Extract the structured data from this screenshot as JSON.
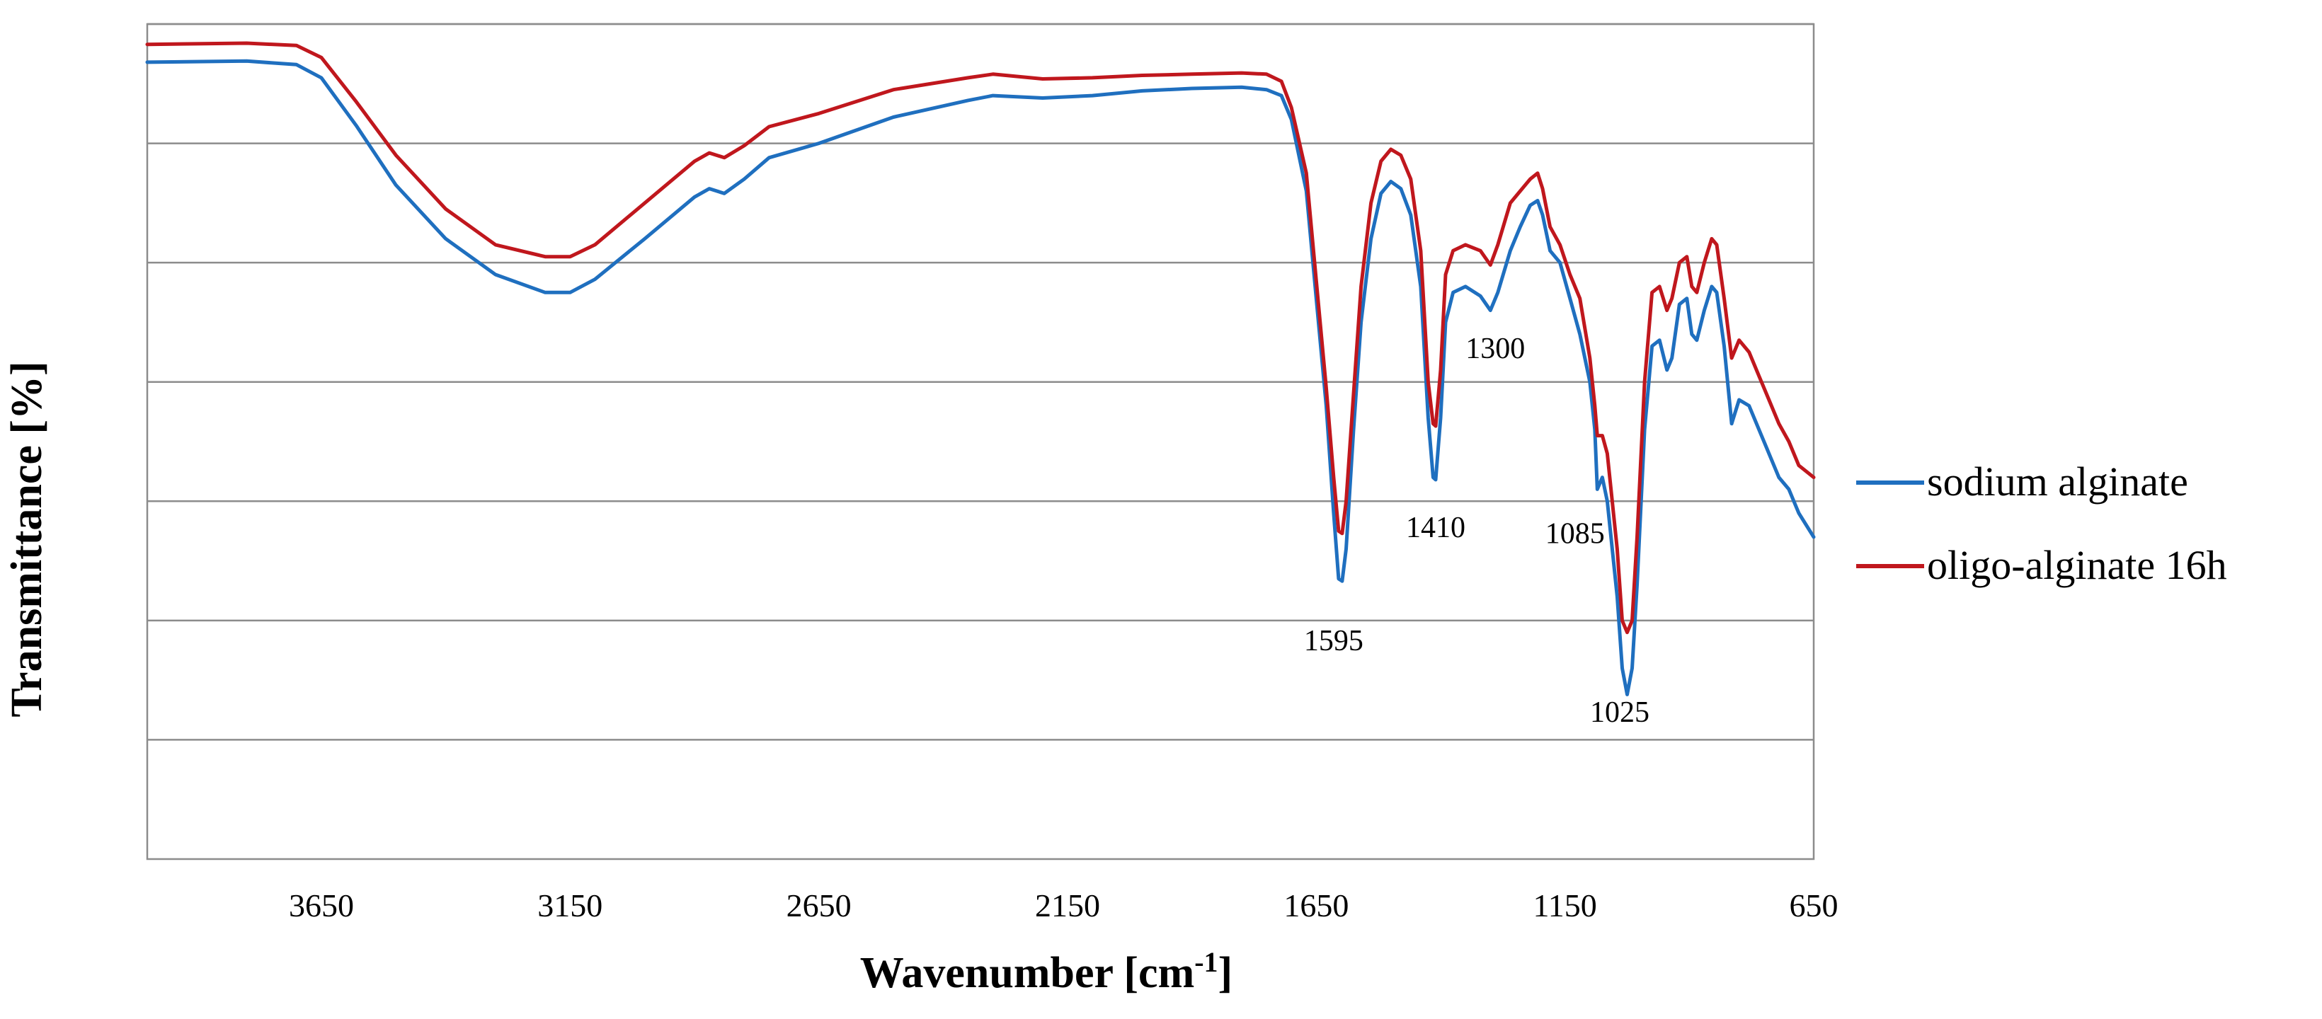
{
  "chart_data": {
    "type": "line",
    "title": "",
    "xlabel": "Wavenumber [cm",
    "xlabel_sup": "-1",
    "xlabel_end": "]",
    "ylabel": "Transmittance [%]",
    "x_reversed": true,
    "xlim": [
      4000,
      650
    ],
    "ylim": [
      0,
      7
    ],
    "y_gridlines": [
      1,
      2,
      3,
      4,
      5,
      6,
      7
    ],
    "grid": true,
    "x_ticks": [
      3650,
      3150,
      2650,
      2150,
      1650,
      1150,
      650
    ],
    "x_tick_labels": [
      "3650",
      "3150",
      "2650",
      "2150",
      "1650",
      "1150",
      "650"
    ],
    "legend_position": "right",
    "series": [
      {
        "name": "sodium alginate",
        "color": "#1f6fbf",
        "points": [
          [
            4000,
            6.68
          ],
          [
            3800,
            6.69
          ],
          [
            3700,
            6.66
          ],
          [
            3650,
            6.55
          ],
          [
            3580,
            6.15
          ],
          [
            3500,
            5.65
          ],
          [
            3400,
            5.2
          ],
          [
            3300,
            4.9
          ],
          [
            3200,
            4.75
          ],
          [
            3150,
            4.75
          ],
          [
            3100,
            4.86
          ],
          [
            3000,
            5.2
          ],
          [
            2900,
            5.55
          ],
          [
            2870,
            5.62
          ],
          [
            2840,
            5.58
          ],
          [
            2800,
            5.7
          ],
          [
            2750,
            5.88
          ],
          [
            2650,
            6.0
          ],
          [
            2500,
            6.22
          ],
          [
            2350,
            6.36
          ],
          [
            2300,
            6.4
          ],
          [
            2200,
            6.38
          ],
          [
            2100,
            6.4
          ],
          [
            2000,
            6.44
          ],
          [
            1900,
            6.46
          ],
          [
            1800,
            6.47
          ],
          [
            1750,
            6.45
          ],
          [
            1720,
            6.4
          ],
          [
            1700,
            6.2
          ],
          [
            1670,
            5.6
          ],
          [
            1650,
            4.7
          ],
          [
            1630,
            3.8
          ],
          [
            1615,
            2.9
          ],
          [
            1605,
            2.35
          ],
          [
            1598,
            2.33
          ],
          [
            1590,
            2.6
          ],
          [
            1575,
            3.6
          ],
          [
            1560,
            4.5
          ],
          [
            1540,
            5.2
          ],
          [
            1520,
            5.58
          ],
          [
            1500,
            5.68
          ],
          [
            1480,
            5.62
          ],
          [
            1460,
            5.4
          ],
          [
            1440,
            4.8
          ],
          [
            1425,
            3.7
          ],
          [
            1415,
            3.2
          ],
          [
            1410,
            3.18
          ],
          [
            1400,
            3.7
          ],
          [
            1390,
            4.5
          ],
          [
            1375,
            4.75
          ],
          [
            1350,
            4.8
          ],
          [
            1320,
            4.72
          ],
          [
            1300,
            4.6
          ],
          [
            1285,
            4.75
          ],
          [
            1260,
            5.1
          ],
          [
            1240,
            5.3
          ],
          [
            1220,
            5.48
          ],
          [
            1205,
            5.52
          ],
          [
            1195,
            5.4
          ],
          [
            1180,
            5.1
          ],
          [
            1160,
            5.0
          ],
          [
            1140,
            4.7
          ],
          [
            1120,
            4.4
          ],
          [
            1100,
            4.0
          ],
          [
            1090,
            3.6
          ],
          [
            1085,
            3.1
          ],
          [
            1075,
            3.2
          ],
          [
            1065,
            3.0
          ],
          [
            1045,
            2.2
          ],
          [
            1035,
            1.6
          ],
          [
            1025,
            1.38
          ],
          [
            1015,
            1.6
          ],
          [
            1005,
            2.3
          ],
          [
            990,
            3.6
          ],
          [
            975,
            4.3
          ],
          [
            960,
            4.35
          ],
          [
            945,
            4.1
          ],
          [
            935,
            4.2
          ],
          [
            920,
            4.65
          ],
          [
            905,
            4.7
          ],
          [
            895,
            4.4
          ],
          [
            885,
            4.35
          ],
          [
            870,
            4.6
          ],
          [
            855,
            4.8
          ],
          [
            845,
            4.75
          ],
          [
            830,
            4.3
          ],
          [
            815,
            3.65
          ],
          [
            800,
            3.85
          ],
          [
            780,
            3.8
          ],
          [
            760,
            3.6
          ],
          [
            740,
            3.4
          ],
          [
            720,
            3.2
          ],
          [
            700,
            3.1
          ],
          [
            680,
            2.9
          ],
          [
            650,
            2.7
          ]
        ]
      },
      {
        "name": "oligo-alginate 16h",
        "color": "#c0171d",
        "points": [
          [
            4000,
            6.83
          ],
          [
            3800,
            6.84
          ],
          [
            3700,
            6.82
          ],
          [
            3650,
            6.72
          ],
          [
            3580,
            6.35
          ],
          [
            3500,
            5.9
          ],
          [
            3400,
            5.45
          ],
          [
            3300,
            5.15
          ],
          [
            3200,
            5.05
          ],
          [
            3150,
            5.05
          ],
          [
            3100,
            5.15
          ],
          [
            3000,
            5.5
          ],
          [
            2900,
            5.85
          ],
          [
            2870,
            5.92
          ],
          [
            2840,
            5.88
          ],
          [
            2800,
            5.98
          ],
          [
            2750,
            6.14
          ],
          [
            2650,
            6.25
          ],
          [
            2500,
            6.45
          ],
          [
            2350,
            6.55
          ],
          [
            2300,
            6.58
          ],
          [
            2200,
            6.54
          ],
          [
            2100,
            6.55
          ],
          [
            2000,
            6.57
          ],
          [
            1900,
            6.58
          ],
          [
            1800,
            6.59
          ],
          [
            1750,
            6.58
          ],
          [
            1720,
            6.52
          ],
          [
            1700,
            6.3
          ],
          [
            1670,
            5.75
          ],
          [
            1650,
            4.85
          ],
          [
            1630,
            3.95
          ],
          [
            1615,
            3.2
          ],
          [
            1605,
            2.75
          ],
          [
            1598,
            2.73
          ],
          [
            1590,
            3.0
          ],
          [
            1575,
            3.9
          ],
          [
            1560,
            4.8
          ],
          [
            1540,
            5.5
          ],
          [
            1520,
            5.85
          ],
          [
            1500,
            5.95
          ],
          [
            1480,
            5.9
          ],
          [
            1460,
            5.7
          ],
          [
            1440,
            5.1
          ],
          [
            1425,
            4.0
          ],
          [
            1415,
            3.65
          ],
          [
            1410,
            3.63
          ],
          [
            1400,
            4.1
          ],
          [
            1390,
            4.9
          ],
          [
            1375,
            5.1
          ],
          [
            1350,
            5.15
          ],
          [
            1320,
            5.1
          ],
          [
            1300,
            4.98
          ],
          [
            1285,
            5.15
          ],
          [
            1260,
            5.5
          ],
          [
            1240,
            5.6
          ],
          [
            1220,
            5.7
          ],
          [
            1205,
            5.75
          ],
          [
            1195,
            5.62
          ],
          [
            1180,
            5.3
          ],
          [
            1160,
            5.15
          ],
          [
            1140,
            4.9
          ],
          [
            1120,
            4.7
          ],
          [
            1100,
            4.2
          ],
          [
            1090,
            3.8
          ],
          [
            1085,
            3.55
          ],
          [
            1075,
            3.55
          ],
          [
            1065,
            3.4
          ],
          [
            1045,
            2.6
          ],
          [
            1035,
            2.0
          ],
          [
            1025,
            1.9
          ],
          [
            1015,
            2.0
          ],
          [
            1005,
            2.7
          ],
          [
            990,
            4.0
          ],
          [
            975,
            4.75
          ],
          [
            960,
            4.8
          ],
          [
            945,
            4.6
          ],
          [
            935,
            4.7
          ],
          [
            920,
            5.0
          ],
          [
            905,
            5.05
          ],
          [
            895,
            4.8
          ],
          [
            885,
            4.75
          ],
          [
            870,
            5.0
          ],
          [
            855,
            5.2
          ],
          [
            845,
            5.15
          ],
          [
            830,
            4.7
          ],
          [
            815,
            4.2
          ],
          [
            800,
            4.35
          ],
          [
            780,
            4.25
          ],
          [
            760,
            4.05
          ],
          [
            740,
            3.85
          ],
          [
            720,
            3.65
          ],
          [
            700,
            3.5
          ],
          [
            680,
            3.3
          ],
          [
            650,
            3.2
          ]
        ]
      }
    ],
    "annotations": [
      {
        "text": "1595",
        "x": 1615,
        "y": 1.75
      },
      {
        "text": "1410",
        "x": 1410,
        "y": 2.7
      },
      {
        "text": "1300",
        "x": 1290,
        "y": 4.2
      },
      {
        "text": "1085",
        "x": 1130,
        "y": 2.65
      },
      {
        "text": "1025",
        "x": 1040,
        "y": 1.15
      }
    ]
  }
}
